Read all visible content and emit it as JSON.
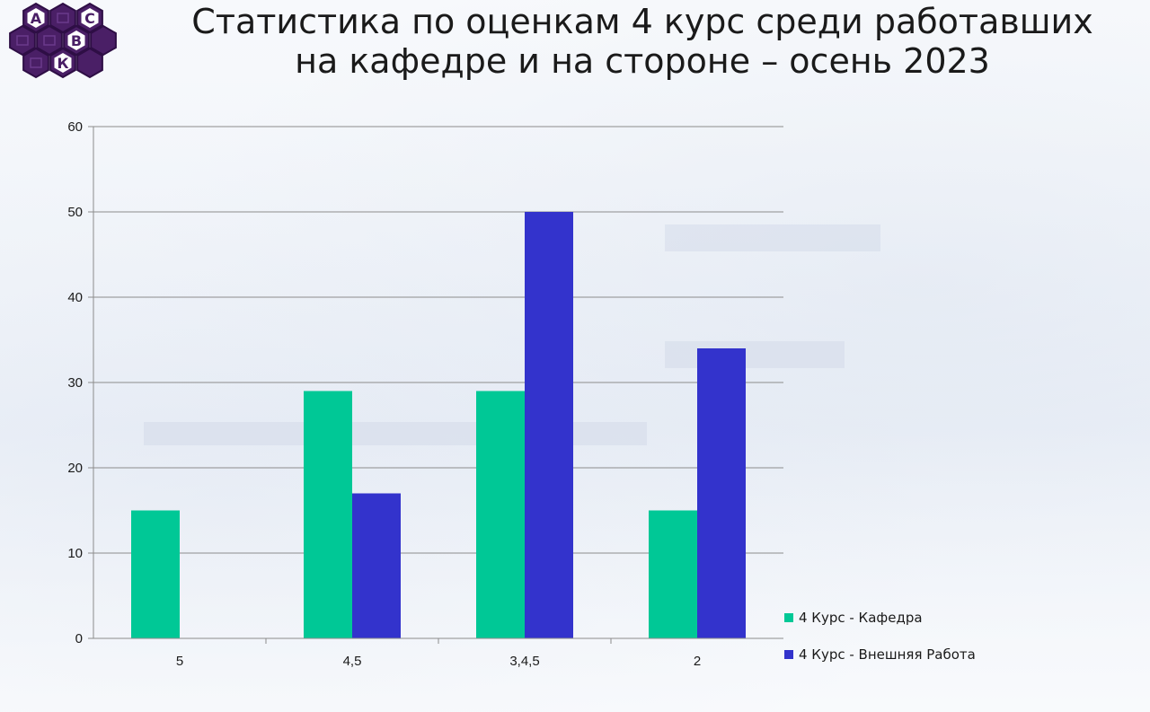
{
  "logo": {
    "letters": [
      "А",
      "С",
      "В",
      "К"
    ],
    "colors": {
      "hex": "#4a1f66",
      "hex_dark": "#2e0e45",
      "cell": "#6b3a8c",
      "letter_bg": "#ffffff"
    }
  },
  "chart_data": {
    "type": "bar",
    "title": "Статистика по оценкам 4 курс среди работавших на кафедре и на стороне – осень 2023",
    "title_lines": [
      "Статистика по оценкам 4 курс среди работавших",
      "на кафедре и на стороне – осень 2023"
    ],
    "categories": [
      "5",
      "4,5",
      "3,4,5",
      "2"
    ],
    "series": [
      {
        "name": "4 Курс - Кафедра",
        "values": [
          15,
          29,
          29,
          15
        ],
        "color": "#00c896"
      },
      {
        "name": "4 Курс - Внешняя Работа",
        "values": [
          null,
          17,
          50,
          34
        ],
        "color": "#3333cc"
      }
    ],
    "ylim": [
      0,
      60
    ],
    "yticks": [
      0,
      10,
      20,
      30,
      40,
      50,
      60
    ],
    "grid": true,
    "legend": "bottom-right",
    "xlabel": "",
    "ylabel": ""
  }
}
